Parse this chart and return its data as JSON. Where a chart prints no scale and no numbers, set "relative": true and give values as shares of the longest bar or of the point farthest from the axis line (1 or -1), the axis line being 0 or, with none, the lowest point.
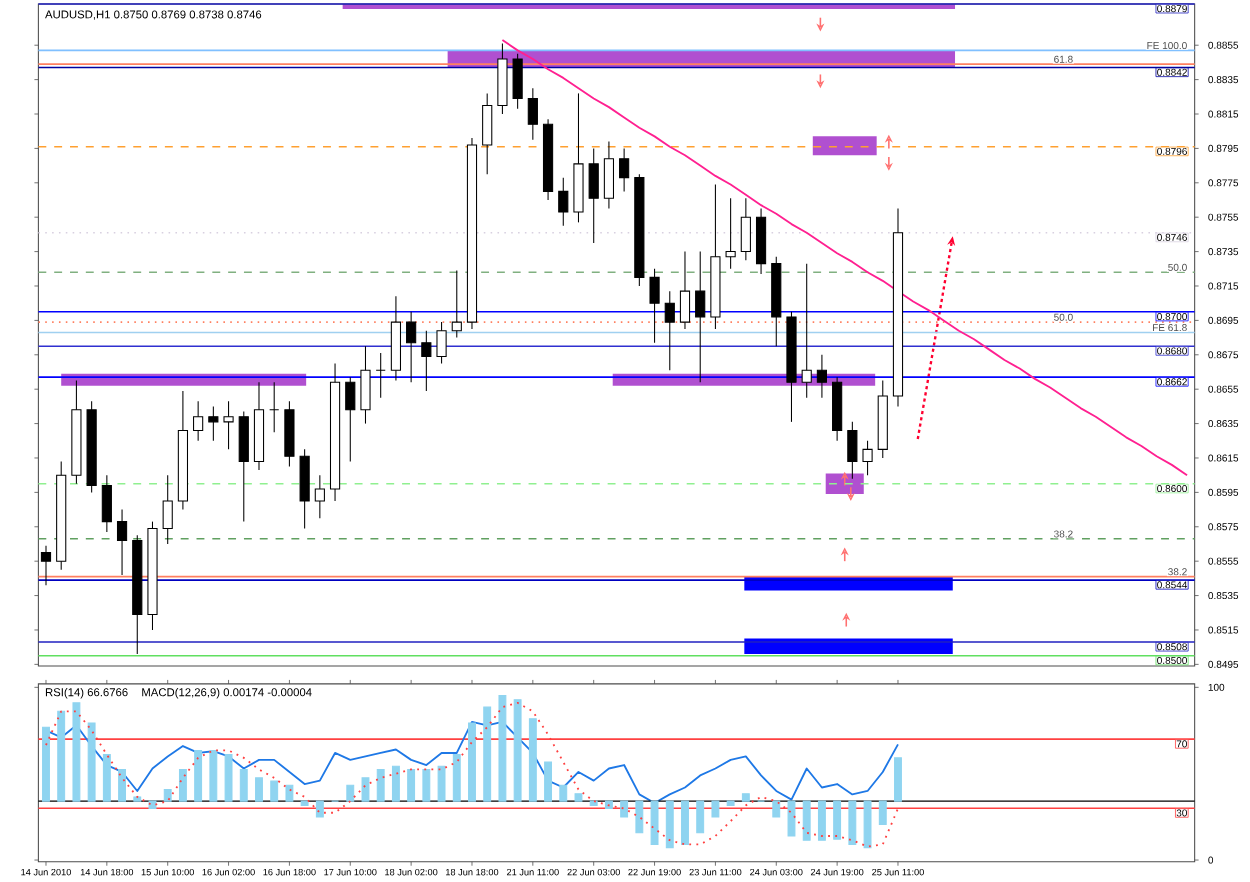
{
  "chart_data": [
    {
      "type": "candlestick",
      "title": "AUDUSD,H1 0.8750 0.8769 0.8738 0.8746",
      "categories": [
        null,
        null,
        null,
        null,
        null,
        null,
        null,
        null,
        null,
        null,
        null,
        null,
        null,
        null,
        null,
        null,
        null,
        null,
        null,
        null,
        null,
        null,
        null,
        null,
        null,
        null,
        null,
        null,
        null,
        null,
        null,
        null,
        null,
        null,
        null,
        null,
        null,
        null,
        null,
        null,
        null,
        null,
        null,
        null,
        null,
        null,
        null,
        null,
        null,
        null,
        null,
        null,
        null,
        null,
        null,
        null,
        null,
        null,
        null,
        null,
        null,
        null,
        null,
        null,
        null,
        null,
        null,
        null,
        null,
        null,
        null,
        null,
        null,
        null,
        null,
        null
      ],
      "ohlc": [
        [
          0.856,
          0.8564,
          0.8541,
          0.8555
        ],
        [
          0.8555,
          0.8613,
          0.855,
          0.8605
        ],
        [
          0.8605,
          0.866,
          0.86,
          0.8643
        ],
        [
          0.8643,
          0.8648,
          0.8595,
          0.8599
        ],
        [
          0.8599,
          0.8605,
          0.8572,
          0.8578
        ],
        [
          0.8578,
          0.8585,
          0.8547,
          0.8567
        ],
        [
          0.8567,
          0.857,
          0.8501,
          0.8524
        ],
        [
          0.8524,
          0.8578,
          0.8515,
          0.8574
        ],
        [
          0.8574,
          0.8605,
          0.8565,
          0.859
        ],
        [
          0.859,
          0.8654,
          0.8585,
          0.8631
        ],
        [
          0.8631,
          0.8648,
          0.8625,
          0.8639
        ],
        [
          0.8639,
          0.8645,
          0.8625,
          0.8636
        ],
        [
          0.8636,
          0.8648,
          0.862,
          0.8639
        ],
        [
          0.8639,
          0.8642,
          0.8578,
          0.8613
        ],
        [
          0.8613,
          0.8659,
          0.8608,
          0.8643
        ],
        [
          0.8643,
          0.8659,
          0.863,
          0.8643
        ],
        [
          0.8643,
          0.8648,
          0.861,
          0.8616
        ],
        [
          0.8616,
          0.862,
          0.8574,
          0.859
        ],
        [
          0.859,
          0.8605,
          0.858,
          0.8597
        ],
        [
          0.8597,
          0.867,
          0.859,
          0.8659
        ],
        [
          0.8659,
          0.8662,
          0.8613,
          0.8643
        ],
        [
          0.8643,
          0.868,
          0.8635,
          0.8666
        ],
        [
          0.8666,
          0.8676,
          0.865,
          0.8666
        ],
        [
          0.8666,
          0.8709,
          0.866,
          0.8694
        ],
        [
          0.8694,
          0.87,
          0.8659,
          0.8682
        ],
        [
          0.8682,
          0.8689,
          0.8654,
          0.8674
        ],
        [
          0.8674,
          0.8694,
          0.867,
          0.8689
        ],
        [
          0.8689,
          0.8724,
          0.8685,
          0.8694
        ],
        [
          0.8694,
          0.8801,
          0.869,
          0.8797
        ],
        [
          0.8797,
          0.8827,
          0.878,
          0.882
        ],
        [
          0.882,
          0.8856,
          0.8815,
          0.8847
        ],
        [
          0.8847,
          0.885,
          0.8818,
          0.8824
        ],
        [
          0.8824,
          0.883,
          0.88,
          0.8809
        ],
        [
          0.8809,
          0.8812,
          0.8765,
          0.877
        ],
        [
          0.877,
          0.8778,
          0.875,
          0.8758
        ],
        [
          0.8758,
          0.8827,
          0.8752,
          0.8786
        ],
        [
          0.8786,
          0.8795,
          0.874,
          0.8766
        ],
        [
          0.8766,
          0.8799,
          0.876,
          0.8789
        ],
        [
          0.8789,
          0.8795,
          0.877,
          0.8778
        ],
        [
          0.8778,
          0.878,
          0.8715,
          0.872
        ],
        [
          0.872,
          0.8725,
          0.8682,
          0.8705
        ],
        [
          0.8705,
          0.8712,
          0.8666,
          0.8694
        ],
        [
          0.8694,
          0.8735,
          0.869,
          0.8712
        ],
        [
          0.8712,
          0.8735,
          0.8659,
          0.8697
        ],
        [
          0.8697,
          0.8774,
          0.869,
          0.8732
        ],
        [
          0.8732,
          0.8766,
          0.8725,
          0.8735
        ],
        [
          0.8735,
          0.8766,
          0.873,
          0.8755
        ],
        [
          0.8755,
          0.876,
          0.8722,
          0.8728
        ],
        [
          0.8728,
          0.8732,
          0.868,
          0.8697
        ],
        [
          0.8697,
          0.87,
          0.8636,
          0.8659
        ],
        [
          0.8659,
          0.8728,
          0.865,
          0.8666
        ],
        [
          0.8666,
          0.8675,
          0.865,
          0.8659
        ],
        [
          0.8659,
          0.8662,
          0.8625,
          0.8631
        ],
        [
          0.8631,
          0.8636,
          0.8603,
          0.8613
        ],
        [
          0.8613,
          0.8625,
          0.8605,
          0.862
        ],
        [
          0.862,
          0.866,
          0.8615,
          0.8651
        ],
        [
          0.8651,
          0.876,
          0.8645,
          0.8746
        ],
        null,
        null,
        null,
        null,
        null,
        null,
        null,
        null,
        null,
        null,
        null,
        null,
        null,
        null,
        null,
        null,
        null,
        null,
        null
      ],
      "series": [
        {
          "type": "line",
          "values": [
            null,
            null,
            null,
            null,
            null,
            null,
            null,
            null,
            null,
            null,
            null,
            null,
            null,
            null,
            null,
            null,
            null,
            null,
            null,
            null,
            null,
            null,
            null,
            null,
            null,
            null,
            null,
            null,
            null,
            null,
            0.8858,
            0.8852,
            0.8847,
            0.8841,
            0.8836,
            0.883,
            0.8824,
            0.8819,
            0.8813,
            0.8807,
            0.8802,
            0.8796,
            0.8791,
            0.8785,
            0.8779,
            0.8774,
            0.8768,
            0.8762,
            0.8757,
            0.8751,
            0.8746,
            0.874,
            0.8734,
            0.8729,
            0.8723,
            0.8718,
            0.8712,
            0.8706,
            0.8701,
            0.8695,
            0.8689,
            0.8684,
            0.8678,
            0.8672,
            0.8667,
            0.8661,
            0.8656,
            0.865,
            0.8644,
            0.8639,
            0.8633,
            0.8627,
            0.8622,
            0.8616,
            0.8611,
            0.8605
          ],
          "color": "#ff2090"
        }
      ],
      "ylim": [
        0.8494,
        0.8879
      ],
      "yticks": [
        0.8855,
        0.8835,
        0.8815,
        0.8795,
        0.8775,
        0.8755,
        0.8735,
        0.8715,
        0.8695,
        0.8675,
        0.8655,
        0.8635,
        0.8615,
        0.8595,
        0.8575,
        0.8555,
        0.8535,
        0.8515,
        0.8495
      ],
      "ref_lines": [
        {
          "axis": "y",
          "value": 0.8879,
          "label": "0.8879",
          "color": "#2020c0"
        },
        {
          "axis": "y",
          "value": 0.8852,
          "color": "#80c0ff"
        },
        {
          "axis": "y",
          "value": 0.8842,
          "label": "0.8842",
          "color": "#0000a0"
        },
        {
          "axis": "y",
          "value": 0.8844,
          "color": "#ff8060"
        },
        {
          "axis": "y",
          "value": 0.8796,
          "label": "0.8796",
          "color": "#ffa030",
          "line_style": "dashed"
        },
        {
          "axis": "y",
          "value": 0.8746,
          "label": "0.8746",
          "color": "#d8d0e0",
          "line_style": "dotted"
        },
        {
          "axis": "y",
          "value": 0.8723,
          "color": "#80b080",
          "line_style": "dashed"
        },
        {
          "axis": "y",
          "value": 0.87,
          "label": "0.8700",
          "color": "#0000ff"
        },
        {
          "axis": "y",
          "value": 0.8694,
          "color": "#ff8060",
          "line_style": "dotted"
        },
        {
          "axis": "y",
          "value": 0.8688,
          "color": "#a0d0f0"
        },
        {
          "axis": "y",
          "value": 0.868,
          "label": "0.8680",
          "color": "#3030d0"
        },
        {
          "axis": "y",
          "value": 0.8662,
          "label": "0.8662",
          "color": "#0000ff"
        },
        {
          "axis": "y",
          "value": 0.86,
          "label": "0.8600",
          "color": "#90f090",
          "line_style": "dashed"
        },
        {
          "axis": "y",
          "value": 0.8568,
          "color": "#60a060",
          "line_style": "dashed"
        },
        {
          "axis": "y",
          "value": 0.8544,
          "label": "0.8544",
          "color": "#0000c0"
        },
        {
          "axis": "y",
          "value": 0.8546,
          "color": "#ff8060"
        },
        {
          "axis": "y",
          "value": 0.8508,
          "label": "0.8508",
          "color": "#2020c0"
        },
        {
          "axis": "y",
          "value": 0.85,
          "label": "0.8500",
          "color": "#60e060"
        }
      ],
      "annotations": [
        {
          "text": "FE 100.0",
          "y": 0.8852
        },
        {
          "text": "61.8",
          "y": 0.8844
        },
        {
          "text": "50.0",
          "y": 0.8723
        },
        {
          "text": "50.0",
          "y": 0.8694
        },
        {
          "text": "FE 61.8",
          "y": 0.8688
        },
        {
          "text": "38.2",
          "y": 0.8568
        },
        {
          "text": "38.2",
          "y": 0.8546
        }
      ],
      "tick_labels": "y"
    },
    {
      "type": "line",
      "title": "RSI(14) 66.6766",
      "categories": [
        "14 Jun 2010",
        null,
        null,
        null,
        "14 Jun 18:00",
        null,
        null,
        null,
        "15 Jun 10:00",
        null,
        null,
        null,
        "16 Jun 02:00",
        null,
        null,
        null,
        "16 Jun 18:00",
        null,
        null,
        null,
        "17 Jun 10:00",
        null,
        null,
        null,
        "18 Jun 02:00",
        null,
        null,
        null,
        "18 Jun 18:00",
        null,
        null,
        null,
        "21 Jun 11:00",
        null,
        null,
        null,
        "22 Jun 03:00",
        null,
        null,
        null,
        "22 Jun 19:00",
        null,
        null,
        null,
        "23 Jun 11:00",
        null,
        null,
        null,
        "24 Jun 03:00",
        null,
        null,
        null,
        "24 Jun 19:00",
        null,
        null,
        null,
        "25 Jun 11:00",
        null,
        null,
        null,
        null,
        null,
        null,
        null,
        null,
        null,
        null,
        null,
        null,
        null,
        null,
        null,
        null,
        null,
        null,
        null
      ],
      "series": [
        {
          "values": [
            75,
            71,
            78,
            66,
            55,
            51,
            40,
            53,
            60,
            66,
            62,
            63,
            60,
            53,
            58,
            58,
            51,
            44,
            46,
            62,
            58,
            60,
            62,
            64,
            58,
            55,
            62,
            62,
            80,
            78,
            80,
            71,
            62,
            46,
            42,
            51,
            46,
            53,
            55,
            38,
            33,
            38,
            42,
            49,
            53,
            58,
            60,
            49,
            40,
            35,
            53,
            42,
            44,
            38,
            40,
            51,
            67,
            null,
            null,
            null,
            null,
            null,
            null,
            null,
            null,
            null,
            null,
            null,
            null,
            null,
            null,
            null,
            null,
            null,
            null,
            null
          ],
          "color": "#1e78e6"
        }
      ],
      "ylim": [
        -1,
        102
      ],
      "yticks": [
        0,
        100
      ],
      "ref_lines": [
        {
          "axis": "y",
          "value": 70,
          "label": "70",
          "color": "#ff4040"
        },
        {
          "axis": "y",
          "value": 30,
          "label": "30",
          "color": "#ff4040"
        }
      ]
    },
    {
      "type": "bar",
      "relative": true,
      "title": "MACD(12,26,9) 0.00174 -0.00004",
      "categories": [
        null,
        null,
        null,
        null,
        null,
        null,
        null,
        null,
        null,
        null,
        null,
        null,
        null,
        null,
        null,
        null,
        null,
        null,
        null,
        null,
        null,
        null,
        null,
        null,
        null,
        null,
        null,
        null,
        null,
        null,
        null,
        null,
        null,
        null,
        null,
        null,
        null,
        null,
        null,
        null,
        null,
        null,
        null,
        null,
        null,
        null,
        null,
        null,
        null,
        null,
        null,
        null,
        null,
        null,
        null,
        null,
        null,
        null,
        null,
        null,
        null,
        null,
        null,
        null,
        null,
        null,
        null,
        null,
        null,
        null,
        null,
        null,
        null,
        null,
        null,
        null
      ],
      "series": [
        {
          "type": "bar",
          "values": [
            0.7,
            0.85,
            0.93,
            0.74,
            0.44,
            0.3,
            0.04,
            -0.07,
            0.11,
            0.3,
            0.48,
            0.48,
            0.44,
            0.3,
            0.22,
            0.19,
            0.15,
            -0.04,
            -0.15,
            0,
            0.15,
            0.22,
            0.3,
            0.33,
            0.3,
            0.3,
            0.33,
            0.44,
            0.74,
            0.89,
            1,
            0.96,
            0.78,
            0.37,
            0.15,
            0.07,
            -0.04,
            -0.07,
            -0.15,
            -0.3,
            -0.41,
            -0.44,
            -0.41,
            -0.3,
            -0.15,
            -0.04,
            0.07,
            0,
            -0.15,
            -0.33,
            -0.37,
            -0.37,
            -0.36,
            -0.41,
            -0.44,
            -0.22,
            0.41,
            null,
            null,
            null,
            null,
            null,
            null,
            null,
            null,
            null,
            null,
            null,
            null,
            null,
            null,
            null,
            null,
            null,
            null,
            null
          ],
          "color": "#8fd4f0"
        },
        {
          "type": "line",
          "values": [
            0.53,
            0.85,
            0.85,
            0.67,
            0.44,
            0.22,
            0.04,
            -0.04,
            0,
            0.22,
            0.41,
            0.48,
            0.48,
            0.41,
            0.3,
            0.22,
            0.11,
            0.04,
            -0.11,
            -0.11,
            0,
            0.15,
            0.22,
            0.26,
            0.3,
            0.3,
            0.3,
            0.37,
            0.56,
            0.7,
            0.89,
            0.93,
            0.85,
            0.63,
            0.37,
            0.11,
            0,
            -0.04,
            -0.07,
            -0.15,
            -0.26,
            -0.37,
            -0.41,
            -0.41,
            -0.33,
            -0.19,
            -0.04,
            0.04,
            0,
            -0.11,
            -0.3,
            -0.33,
            -0.33,
            -0.37,
            -0.43,
            -0.41,
            -0.07,
            null,
            null,
            null,
            null,
            null,
            null,
            null,
            null,
            null,
            null,
            null,
            null,
            null,
            null,
            null,
            null,
            null,
            null,
            null
          ],
          "color": "#ff4040",
          "line_style": "dotted"
        }
      ],
      "tick_labels": false
    }
  ]
}
